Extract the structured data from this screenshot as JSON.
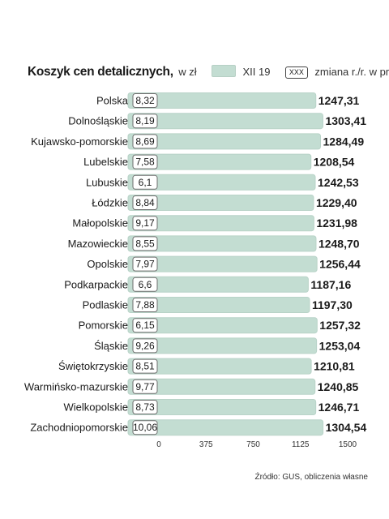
{
  "header": {
    "title": "Koszyk cen detalicznych,",
    "unit": "w zł",
    "legend_series": "XII 19",
    "legend_box_text": "XXX",
    "legend_box_desc": "zmiana r./r. w proc."
  },
  "source": "Źródło: GUS, obliczenia własne",
  "colors": {
    "bar": "#c3ddd2",
    "box_border": "#6f6f6f"
  },
  "chart_data": {
    "type": "bar",
    "orientation": "horizontal",
    "title": "Koszyk cen detalicznych, w zł",
    "categories": [
      "Polska",
      "Dolnośląskie",
      "Kujawsko-pomorskie",
      "Lubelskie",
      "Lubuskie",
      "Łódzkie",
      "Małopolskie",
      "Mazowieckie",
      "Opolskie",
      "Podkarpackie",
      "Podlaskie",
      "Pomorskie",
      "Śląskie",
      "Świętokrzyskie",
      "Warmińsko-mazurskie",
      "Wielkopolskie",
      "Zachodniopomorskie"
    ],
    "series": [
      {
        "name": "XII 19",
        "values": [
          1247.31,
          1303.41,
          1284.49,
          1208.54,
          1242.53,
          1229.4,
          1231.98,
          1248.7,
          1256.44,
          1187.16,
          1197.3,
          1257.32,
          1253.04,
          1210.81,
          1240.85,
          1246.71,
          1304.54
        ],
        "labels": [
          "1247,31",
          "1303,41",
          "1284,49",
          "1208,54",
          "1242,53",
          "1229,40",
          "1231,98",
          "1248,70",
          "1256,44",
          "1187,16",
          "1197,30",
          "1257,32",
          "1253,04",
          "1210,81",
          "1240,85",
          "1246,71",
          "1304,54"
        ]
      },
      {
        "name": "zmiana r./r. w proc.",
        "values": [
          8.32,
          8.19,
          8.69,
          7.58,
          6.1,
          8.84,
          9.17,
          8.55,
          7.97,
          6.6,
          7.88,
          6.15,
          9.26,
          8.51,
          9.77,
          8.73,
          10.06
        ],
        "labels": [
          "8,32",
          "8,19",
          "8,69",
          "7,58",
          "6,1",
          "8,84",
          "9,17",
          "8,55",
          "7,97",
          "6,6",
          "7,88",
          "6,15",
          "9,26",
          "8,51",
          "9,77",
          "8,73",
          "10,06"
        ]
      }
    ],
    "xlim": [
      0,
      1500
    ],
    "xticks": [
      "0",
      "375",
      "750",
      "1125",
      "1500"
    ],
    "grid": false,
    "legend": "top"
  }
}
